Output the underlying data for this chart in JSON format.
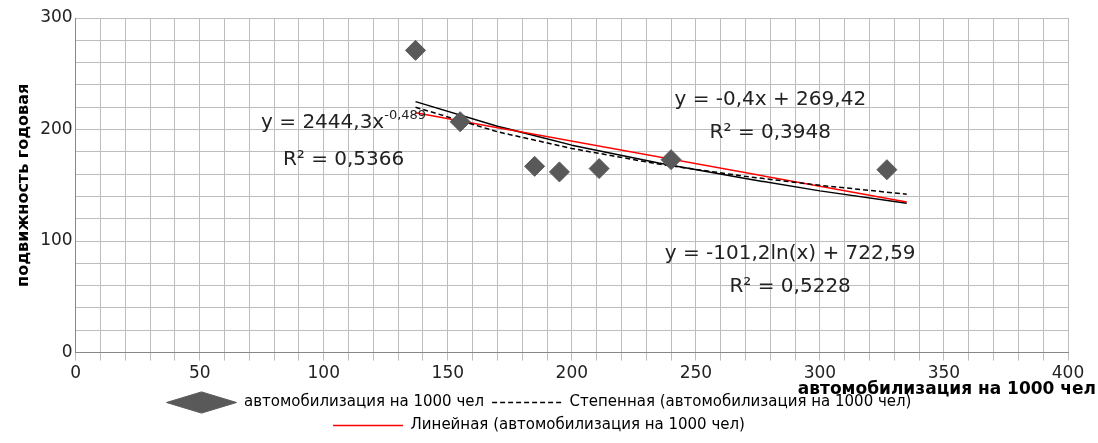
{
  "chart_data": {
    "type": "scatter",
    "xlabel": "автомобилизация на 1000 чел",
    "ylabel": "подвижность годовая",
    "xlim": [
      0,
      400
    ],
    "ylim": [
      0,
      300
    ],
    "xticks": [
      0,
      {
        "value": 10,
        "label": null
      },
      {
        "value": 20,
        "label": null
      },
      {
        "value": 30,
        "label": null
      },
      {
        "value": 40,
        "label": null
      },
      50,
      {
        "value": 60,
        "label": null
      },
      {
        "value": 70,
        "label": null
      },
      {
        "value": 80,
        "label": null
      },
      {
        "value": 90,
        "label": null
      },
      100,
      {
        "value": 110,
        "label": null
      },
      {
        "value": 120,
        "label": null
      },
      {
        "value": 130,
        "label": null
      },
      {
        "value": 140,
        "label": null
      },
      150,
      {
        "value": 160,
        "label": null
      },
      {
        "value": 170,
        "label": null
      },
      {
        "value": 180,
        "label": null
      },
      {
        "value": 190,
        "label": null
      },
      200,
      {
        "value": 210,
        "label": null
      },
      {
        "value": 220,
        "label": null
      },
      {
        "value": 230,
        "label": null
      },
      {
        "value": 240,
        "label": null
      },
      250,
      {
        "value": 260,
        "label": null
      },
      {
        "value": 270,
        "label": null
      },
      {
        "value": 280,
        "label": null
      },
      {
        "value": 290,
        "label": null
      },
      300,
      {
        "value": 310,
        "label": null
      },
      {
        "value": 320,
        "label": null
      },
      {
        "value": 330,
        "label": null
      },
      {
        "value": 340,
        "label": null
      },
      350,
      {
        "value": 360,
        "label": null
      },
      {
        "value": 370,
        "label": null
      },
      {
        "value": 380,
        "label": null
      },
      {
        "value": 390,
        "label": null
      },
      400
    ],
    "yticks": [
      0,
      {
        "value": 20,
        "label": null
      },
      {
        "value": 40,
        "label": null
      },
      {
        "value": 60,
        "label": null
      },
      {
        "value": 80,
        "label": null
      },
      100,
      {
        "value": 120,
        "label": null
      },
      {
        "value": 140,
        "label": null
      },
      {
        "value": 160,
        "label": null
      },
      {
        "value": 180,
        "label": null
      },
      200,
      {
        "value": 220,
        "label": null
      },
      {
        "value": 240,
        "label": null
      },
      {
        "value": 260,
        "label": null
      },
      {
        "value": 280,
        "label": null
      },
      300
    ],
    "grid": true,
    "legend": "bottom",
    "marker": "diamond",
    "series": [
      {
        "name": "автомобилизация на 1000 чел",
        "color": "#595959",
        "x": [
          137,
          155,
          185,
          195,
          211,
          240,
          327
        ],
        "values": [
          271,
          207,
          167,
          162,
          165,
          173,
          164
        ]
      },
      {
        "name": "Степенная (автомобилизация на 1000 чел)",
        "type": "line",
        "color": "#000000",
        "line_style": "dashed",
        "marker": "none",
        "x": [
          137,
          170,
          200,
          235,
          270,
          300,
          335
        ],
        "values": [
          220,
          198,
          183,
          169,
          158,
          150,
          142
        ]
      },
      {
        "name": "Линейная (автомобилизация на 1000 чел)",
        "type": "line",
        "color": "#ff0000",
        "line_style": "solid",
        "marker": "none",
        "x": [
          137,
          335
        ],
        "values": [
          215,
          135
        ]
      },
      {
        "type": "line",
        "color": "#000000",
        "line_style": "solid",
        "marker": "none",
        "x": [
          137,
          170,
          200,
          235,
          270,
          300,
          335
        ],
        "values": [
          225,
          203,
          186,
          170,
          156,
          145,
          134
        ]
      }
    ],
    "annotations": [
      "y = 2444,3x$^{-0,489}$",
      "R² = 0,5366",
      "y = -0,4x + 269,42",
      "R² = 0,3948",
      "y = -101,2ln(x) + 722,59",
      "R² = 0,5228"
    ]
  }
}
